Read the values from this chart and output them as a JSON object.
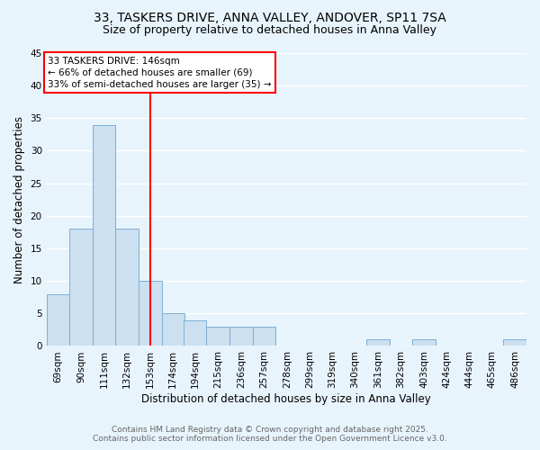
{
  "title_line1": "33, TASKERS DRIVE, ANNA VALLEY, ANDOVER, SP11 7SA",
  "title_line2": "Size of property relative to detached houses in Anna Valley",
  "bins": [
    69,
    90,
    111,
    132,
    153,
    174,
    194,
    215,
    236,
    257,
    278,
    299,
    319,
    340,
    361,
    382,
    403,
    424,
    444,
    465,
    486
  ],
  "bin_labels": [
    "69sqm",
    "90sqm",
    "111sqm",
    "132sqm",
    "153sqm",
    "174sqm",
    "194sqm",
    "215sqm",
    "236sqm",
    "257sqm",
    "278sqm",
    "299sqm",
    "319sqm",
    "340sqm",
    "361sqm",
    "382sqm",
    "403sqm",
    "424sqm",
    "444sqm",
    "465sqm",
    "486sqm"
  ],
  "values": [
    8,
    18,
    34,
    18,
    10,
    5,
    4,
    3,
    3,
    3,
    0,
    0,
    0,
    0,
    1,
    0,
    1,
    0,
    0,
    0,
    1
  ],
  "bar_color": "#cce0f0",
  "bar_edge_color": "#7bafd4",
  "red_line_x": 153,
  "annotation_text_line1": "33 TASKERS DRIVE: 146sqm",
  "annotation_text_line2": "← 66% of detached houses are smaller (69)",
  "annotation_text_line3": "33% of semi-detached houses are larger (35) →",
  "annotation_box_color": "white",
  "annotation_box_edge_color": "red",
  "xlabel": "Distribution of detached houses by size in Anna Valley",
  "ylabel": "Number of detached properties",
  "ylim_max": 45,
  "yticks": [
    0,
    5,
    10,
    15,
    20,
    25,
    30,
    35,
    40,
    45
  ],
  "footer_line1": "Contains HM Land Registry data © Crown copyright and database right 2025.",
  "footer_line2": "Contains public sector information licensed under the Open Government Licence v3.0.",
  "bg_color": "#e8f4fc",
  "grid_color": "#ffffff",
  "title_fontsize": 10,
  "subtitle_fontsize": 9,
  "axis_label_fontsize": 8.5,
  "tick_fontsize": 7.5,
  "annotation_fontsize": 7.5,
  "footer_fontsize": 6.5
}
